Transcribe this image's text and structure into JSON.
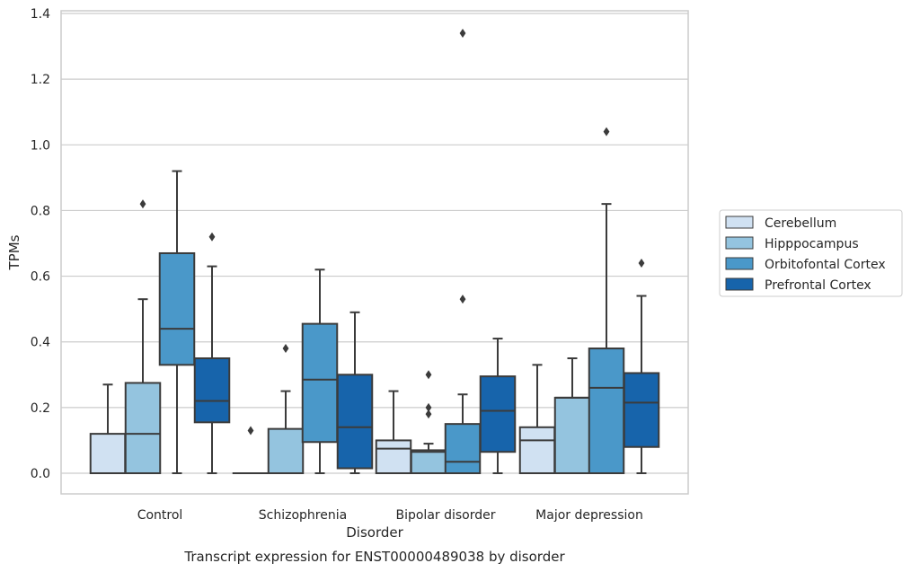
{
  "chart_data": {
    "type": "box",
    "caption": "Transcript expression for ENST00000489038 by disorder",
    "xlabel": "Disorder",
    "ylabel": "TPMs",
    "ylim": [
      -0.06,
      1.41
    ],
    "yticks": [
      "0.0",
      "0.2",
      "0.4",
      "0.6",
      "0.8",
      "1.0",
      "1.2",
      "1.4"
    ],
    "grid": true,
    "legend_position": "right",
    "categories": [
      "Control",
      "Schizophrenia",
      "Bipolar disorder",
      "Major depression"
    ],
    "series": [
      {
        "name": "Cerebellum",
        "color": "#d0e1f2",
        "boxes": [
          {
            "whislo": 0.0,
            "q1": 0.0,
            "med": 0.0,
            "q3": 0.12,
            "whishi": 0.27,
            "fliers": []
          },
          {
            "whislo": 0.0,
            "q1": 0.0,
            "med": 0.0,
            "q3": 0.0,
            "whishi": 0.0,
            "fliers": [
              0.13
            ]
          },
          {
            "whislo": 0.0,
            "q1": 0.0,
            "med": 0.075,
            "q3": 0.1,
            "whishi": 0.25,
            "fliers": []
          },
          {
            "whislo": 0.0,
            "q1": 0.0,
            "med": 0.1,
            "q3": 0.14,
            "whishi": 0.33,
            "fliers": []
          }
        ]
      },
      {
        "name": "Hipppocampus",
        "color": "#94c4df",
        "boxes": [
          {
            "whislo": 0.0,
            "q1": 0.0,
            "med": 0.12,
            "q3": 0.275,
            "whishi": 0.53,
            "fliers": [
              0.82
            ]
          },
          {
            "whislo": 0.0,
            "q1": 0.0,
            "med": 0.0,
            "q3": 0.135,
            "whishi": 0.25,
            "fliers": [
              0.38
            ]
          },
          {
            "whislo": 0.0,
            "q1": 0.0,
            "med": 0.065,
            "q3": 0.07,
            "whishi": 0.09,
            "fliers": [
              0.18,
              0.2,
              0.3
            ]
          },
          {
            "whislo": 0.0,
            "q1": 0.0,
            "med": 0.23,
            "q3": 0.23,
            "whishi": 0.35,
            "fliers": []
          }
        ]
      },
      {
        "name": "Orbitofontal Cortex",
        "color": "#4a98c9",
        "boxes": [
          {
            "whislo": 0.0,
            "q1": 0.33,
            "med": 0.44,
            "q3": 0.67,
            "whishi": 0.92,
            "fliers": []
          },
          {
            "whislo": 0.0,
            "q1": 0.095,
            "med": 0.285,
            "q3": 0.455,
            "whishi": 0.62,
            "fliers": []
          },
          {
            "whislo": 0.0,
            "q1": 0.0,
            "med": 0.035,
            "q3": 0.15,
            "whishi": 0.24,
            "fliers": [
              0.53,
              1.34
            ]
          },
          {
            "whislo": 0.0,
            "q1": 0.0,
            "med": 0.26,
            "q3": 0.38,
            "whishi": 0.82,
            "fliers": [
              1.04
            ]
          }
        ]
      },
      {
        "name": "Prefrontal Cortex",
        "color": "#1764ab",
        "boxes": [
          {
            "whislo": 0.0,
            "q1": 0.155,
            "med": 0.22,
            "q3": 0.35,
            "whishi": 0.63,
            "fliers": [
              0.72
            ]
          },
          {
            "whislo": 0.0,
            "q1": 0.015,
            "med": 0.14,
            "q3": 0.3,
            "whishi": 0.49,
            "fliers": []
          },
          {
            "whislo": 0.0,
            "q1": 0.065,
            "med": 0.19,
            "q3": 0.295,
            "whishi": 0.41,
            "fliers": []
          },
          {
            "whislo": 0.0,
            "q1": 0.08,
            "med": 0.215,
            "q3": 0.305,
            "whishi": 0.54,
            "fliers": [
              0.64
            ]
          }
        ]
      }
    ]
  }
}
